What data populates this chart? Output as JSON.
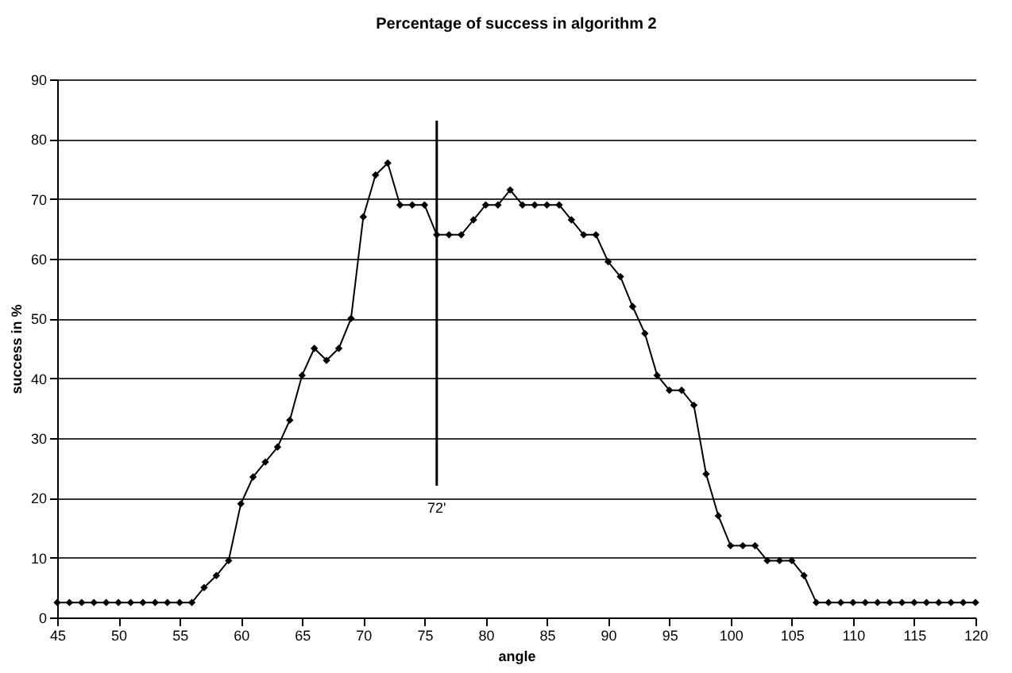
{
  "chart_data": {
    "type": "line",
    "title": "Percentage of success in algorithm 2",
    "xlabel": "angle",
    "ylabel": "success in %",
    "x": [
      45,
      46,
      47,
      48,
      49,
      50,
      51,
      52,
      53,
      54,
      55,
      56,
      57,
      58,
      59,
      60,
      61,
      62,
      63,
      64,
      65,
      66,
      67,
      68,
      69,
      70,
      71,
      72,
      73,
      74,
      75,
      76,
      77,
      78,
      79,
      80,
      81,
      82,
      83,
      84,
      85,
      86,
      87,
      88,
      89,
      90,
      91,
      92,
      93,
      94,
      95,
      96,
      97,
      98,
      99,
      100,
      101,
      102,
      103,
      104,
      105,
      106,
      107,
      108,
      109,
      110,
      111,
      112,
      113,
      114,
      115,
      116,
      117,
      118,
      119,
      120
    ],
    "series": [
      {
        "color": "#000000",
        "values": [
          2.5,
          2.5,
          2.5,
          2.5,
          2.5,
          2.5,
          2.5,
          2.5,
          2.5,
          2.5,
          2.5,
          2.5,
          5,
          7,
          9.5,
          19,
          23.5,
          26,
          28.5,
          33,
          40.5,
          45,
          43,
          45,
          50,
          67,
          74,
          76,
          69,
          69,
          69,
          64,
          64,
          64,
          66.5,
          69,
          69,
          71.5,
          69,
          69,
          69,
          69,
          66.5,
          64,
          64,
          59.5,
          57,
          52,
          47.5,
          40.5,
          38,
          38,
          35.5,
          24,
          17,
          12,
          12,
          12,
          9.5,
          9.5,
          9.5,
          7,
          2.5,
          2.5,
          2.5,
          2.5,
          2.5,
          2.5,
          2.5,
          2.5,
          2.5,
          2.5,
          2.5,
          2.5,
          2.5,
          2.5
        ]
      }
    ],
    "xlim": [
      45,
      120
    ],
    "xticks": [
      45,
      50,
      55,
      60,
      65,
      70,
      75,
      80,
      85,
      90,
      95,
      100,
      105,
      110,
      115,
      120
    ],
    "ylim": [
      0,
      90
    ],
    "yticks": [
      0,
      10,
      20,
      30,
      40,
      50,
      60,
      70,
      80,
      90
    ],
    "ref_lines": [
      {
        "axis": "x",
        "value": 76
      }
    ],
    "annotations": [
      "72'"
    ],
    "grid": "y",
    "marker": "diamond",
    "line_style": "solid"
  }
}
